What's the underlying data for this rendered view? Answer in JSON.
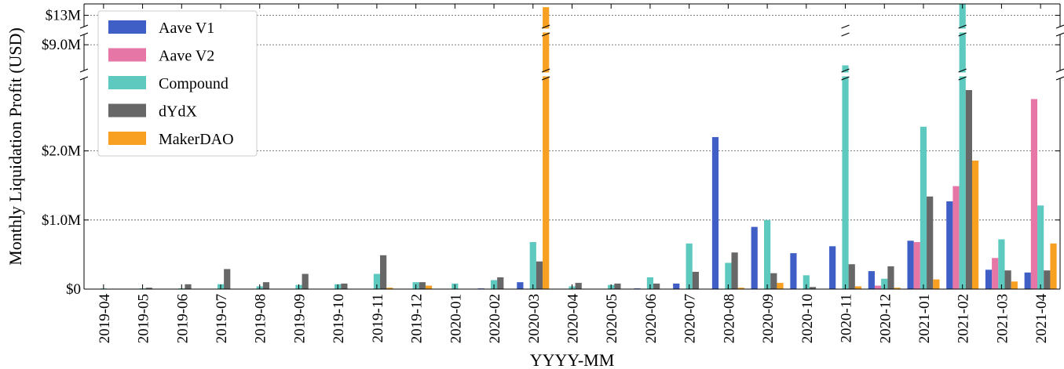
{
  "chart_data": {
    "type": "bar",
    "xlabel": "YYYY-MM",
    "ylabel": "Monthly Liquidation Profit (USD)",
    "categories": [
      "2019-04",
      "2019-05",
      "2019-06",
      "2019-07",
      "2019-08",
      "2019-09",
      "2019-10",
      "2019-11",
      "2019-12",
      "2020-01",
      "2020-02",
      "2020-03",
      "2020-04",
      "2020-05",
      "2020-06",
      "2020-07",
      "2020-08",
      "2020-09",
      "2020-10",
      "2020-11",
      "2020-12",
      "2021-01",
      "2021-02",
      "2021-03",
      "2021-04"
    ],
    "series": [
      {
        "name": "Aave V1",
        "color": "#3f5fc6",
        "values": [
          null,
          null,
          null,
          null,
          null,
          null,
          null,
          null,
          null,
          null,
          0.01,
          0.1,
          null,
          null,
          0.01,
          0.08,
          2.2,
          0.9,
          0.52,
          0.62,
          0.26,
          0.7,
          1.27,
          0.28,
          0.24
        ]
      },
      {
        "name": "Aave V2",
        "color": "#e576a6",
        "values": [
          null,
          null,
          null,
          null,
          null,
          null,
          null,
          null,
          null,
          null,
          null,
          null,
          null,
          null,
          null,
          null,
          null,
          null,
          null,
          null,
          0.05,
          0.68,
          1.49,
          0.45,
          2.75
        ]
      },
      {
        "name": "Compound",
        "color": "#5dc9bf",
        "values": [
          0.0,
          0.0,
          0.01,
          0.07,
          0.04,
          0.06,
          0.07,
          0.22,
          0.1,
          0.08,
          0.13,
          0.68,
          0.04,
          0.06,
          0.17,
          0.66,
          0.38,
          1.0,
          0.2,
          7.8,
          0.15,
          2.35,
          10.0,
          0.72,
          1.21
        ]
      },
      {
        "name": "dYdX",
        "color": "#676767",
        "values": [
          null,
          0.02,
          0.07,
          0.29,
          0.1,
          0.22,
          0.08,
          0.49,
          0.1,
          null,
          0.17,
          0.4,
          0.09,
          0.08,
          0.08,
          0.25,
          0.53,
          0.23,
          0.03,
          0.36,
          0.33,
          1.34,
          2.88,
          0.27,
          0.27
        ]
      },
      {
        "name": "MakerDAO",
        "color": "#f7a022",
        "values": [
          null,
          null,
          null,
          null,
          null,
          null,
          null,
          0.02,
          0.05,
          null,
          null,
          13.5,
          null,
          null,
          null,
          null,
          0.02,
          0.09,
          null,
          0.04,
          0.02,
          0.14,
          1.86,
          0.11,
          0.66
        ]
      }
    ],
    "yticks": [
      {
        "value": 0,
        "label": "$0"
      },
      {
        "value": 1.0,
        "label": "$1.0M"
      },
      {
        "value": 2.0,
        "label": "$2.0M"
      },
      {
        "value": 9.0,
        "label": "$9.0M"
      },
      {
        "value": 13.0,
        "label": "$13M"
      }
    ],
    "y_segments": [
      [
        0,
        3.05
      ],
      [
        7.5,
        9.6
      ],
      [
        12.3,
        13.7
      ]
    ],
    "y_unit": "million USD",
    "axis_break": true,
    "grid": "horizontal dotted",
    "legend_position": "top-left"
  }
}
